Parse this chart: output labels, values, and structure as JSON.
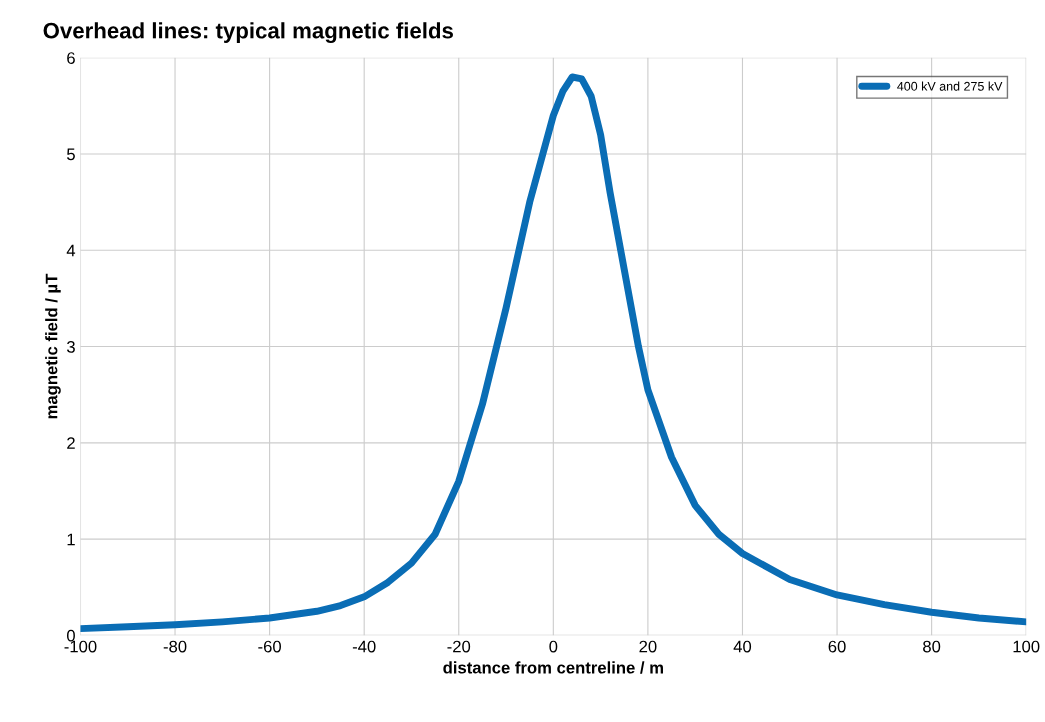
{
  "chart_data": {
    "type": "line",
    "title": "Overhead lines: typical magnetic fields",
    "xlabel": "distance from centreline / m",
    "ylabel": "magnetic field / µT",
    "x": [
      -100,
      -90,
      -80,
      -70,
      -60,
      -50,
      -45,
      -40,
      -35,
      -30,
      -25,
      -20,
      -15,
      -10,
      -5,
      0,
      2,
      4,
      6,
      8,
      10,
      12,
      15,
      18,
      20,
      25,
      30,
      35,
      40,
      50,
      60,
      70,
      80,
      90,
      100
    ],
    "series": [
      {
        "name": "400 kV and 275 kV",
        "color": "#0a6db5",
        "values": [
          0.07,
          0.09,
          0.11,
          0.14,
          0.18,
          0.25,
          0.31,
          0.4,
          0.55,
          0.75,
          1.05,
          1.6,
          2.4,
          3.4,
          4.5,
          5.4,
          5.65,
          5.8,
          5.78,
          5.6,
          5.2,
          4.6,
          3.8,
          3.0,
          2.55,
          1.85,
          1.35,
          1.05,
          0.85,
          0.58,
          0.42,
          0.32,
          0.24,
          0.18,
          0.14
        ]
      }
    ],
    "xlim": [
      -100,
      100
    ],
    "ylim": [
      0,
      6
    ],
    "xticks": [
      -100,
      -80,
      -60,
      -40,
      -20,
      0,
      20,
      40,
      60,
      80,
      100
    ],
    "yticks": [
      0,
      1,
      2,
      3,
      4,
      5,
      6
    ],
    "grid": true,
    "legend": "top right",
    "marker": "none",
    "line_style": "solid"
  }
}
